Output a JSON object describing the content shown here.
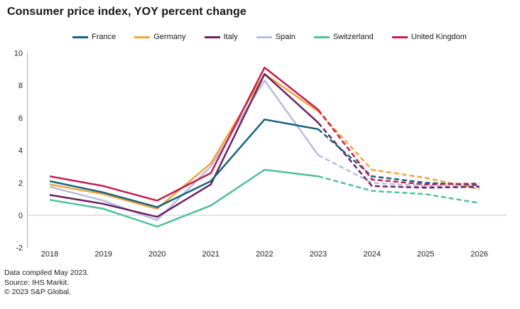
{
  "title": "Consumer price index, YOY percent change",
  "footer": {
    "line1": "Data compiled May 2023.",
    "line2": "Source: IHS Markit.",
    "line3": "© 2023 S&P Global."
  },
  "chart_data": {
    "type": "line",
    "title": "Consumer price index, YOY percent change",
    "x": [
      2018,
      2019,
      2020,
      2021,
      2022,
      2023,
      2024,
      2025,
      2026
    ],
    "xlabel": "",
    "ylabel": "YOY percent change",
    "ylim": [
      -2,
      10
    ],
    "yticks": [
      10,
      8,
      6,
      4,
      2,
      0,
      -2
    ],
    "grid": "zero-line-only",
    "legend_position": "top",
    "forecast_from_x": 2023,
    "forecast_style": "dashed",
    "series": [
      {
        "name": "France",
        "color": "#15647d",
        "values": [
          2.1,
          1.4,
          0.5,
          2.1,
          5.9,
          5.3,
          2.4,
          2.0,
          1.85
        ]
      },
      {
        "name": "Germany",
        "color": "#f0a43c",
        "values": [
          1.9,
          1.3,
          0.4,
          3.2,
          8.7,
          6.4,
          2.8,
          2.3,
          1.6
        ]
      },
      {
        "name": "Italy",
        "color": "#6e2063",
        "values": [
          1.25,
          0.7,
          -0.1,
          1.9,
          8.7,
          5.7,
          1.8,
          1.7,
          1.75
        ]
      },
      {
        "name": "Spain",
        "color": "#b7bde2",
        "values": [
          1.75,
          0.9,
          -0.3,
          3.0,
          8.3,
          3.7,
          2.0,
          1.8,
          1.8
        ]
      },
      {
        "name": "Switzerland",
        "color": "#4fbf9d",
        "values": [
          0.95,
          0.4,
          -0.7,
          0.6,
          2.8,
          2.4,
          1.5,
          1.3,
          0.75
        ]
      },
      {
        "name": "United Kingdom",
        "color": "#c41d4f",
        "values": [
          2.4,
          1.8,
          0.9,
          2.6,
          9.1,
          6.5,
          2.2,
          1.9,
          1.95
        ]
      }
    ]
  }
}
